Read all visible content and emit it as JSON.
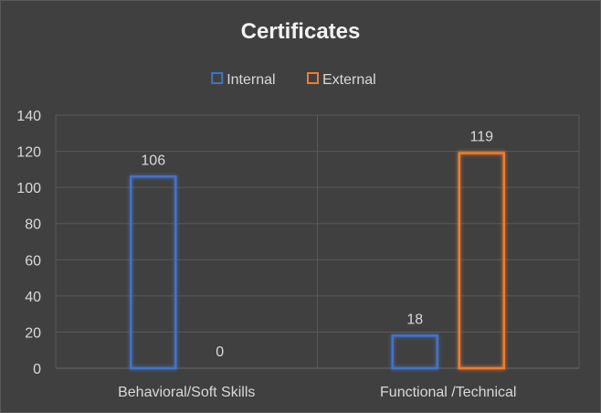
{
  "chart_data": {
    "type": "bar",
    "title": "Certificates",
    "categories": [
      "Behavioral/Soft Skills",
      "Functional /Technical"
    ],
    "series": [
      {
        "name": "Internal",
        "values": [
          106,
          18
        ],
        "color": "#4472c4"
      },
      {
        "name": "External",
        "values": [
          0,
          119
        ],
        "color": "#ed7d31"
      }
    ],
    "ylim": [
      0,
      140
    ],
    "yticks": [
      0,
      20,
      40,
      60,
      80,
      100,
      120,
      140
    ],
    "grid": true,
    "legend": "top-center",
    "bar_style": "outline-glow"
  }
}
